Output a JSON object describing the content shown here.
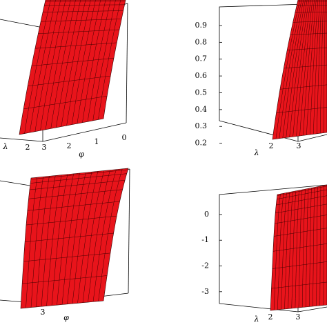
{
  "chart_data": [
    {
      "type": "surface3d",
      "x_label": "λ",
      "xlim": [
        0,
        3
      ],
      "xticks": [
        2,
        3
      ],
      "y_label": "φ",
      "ylim": [
        0,
        3
      ],
      "yticks": [
        2,
        1,
        0
      ],
      "color": "#e8141b"
    },
    {
      "type": "surface3d",
      "x_label": "λ",
      "xlim": [
        0,
        3
      ],
      "xticks": [
        2,
        3
      ],
      "zlim": [
        0.1,
        1
      ],
      "zticks": [
        0.9,
        0.8,
        0.7,
        0.6,
        0.5,
        0.4,
        0.3,
        0.2
      ],
      "color": "#e8141b"
    },
    {
      "type": "surface3d",
      "y_label": "φ",
      "xlim": [
        0,
        3
      ],
      "xticks": [
        3
      ],
      "color": "#e8141b"
    },
    {
      "type": "surface3d",
      "x_label": "λ",
      "xlim": [
        0,
        3
      ],
      "xticks": [
        2,
        3
      ],
      "zlim": [
        -3.3,
        0.4
      ],
      "zticks": [
        0,
        -1,
        -2,
        -3
      ],
      "color": "#e8141b"
    }
  ]
}
